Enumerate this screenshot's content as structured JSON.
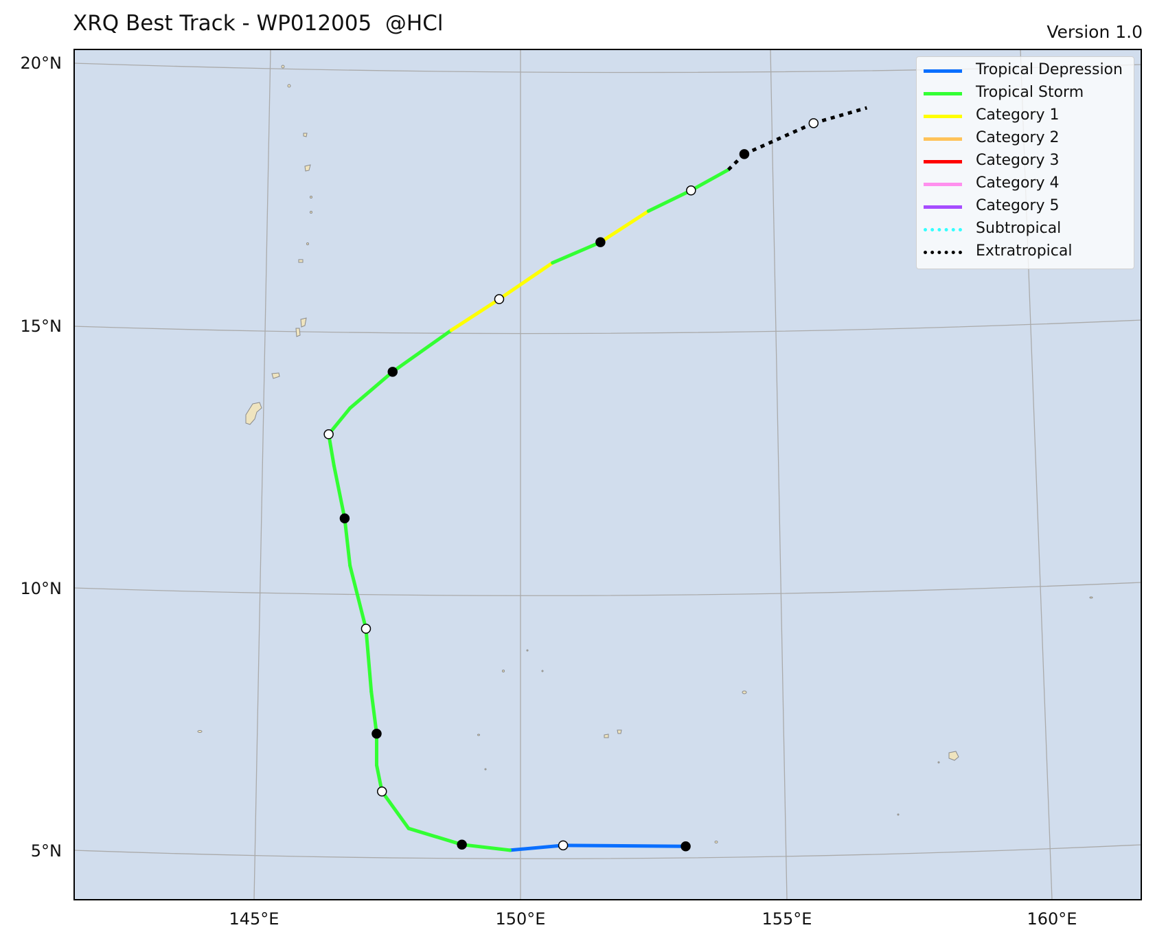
{
  "header": {
    "title": "XRQ Best Track - WP012005  @HCl",
    "version": "Version 1.0"
  },
  "map": {
    "ocean_color": "#d1dded",
    "land_color": "#efe4bf",
    "grid_color": "#aaaaaa",
    "lat_labels": [
      "20°N",
      "15°N",
      "10°N",
      "5°N"
    ],
    "lon_labels": [
      "145°E",
      "150°E",
      "155°E",
      "160°E"
    ]
  },
  "legend": {
    "items": [
      {
        "label": "Tropical Depression",
        "color": "#0a6fff",
        "style": "solid"
      },
      {
        "label": "Tropical Storm",
        "color": "#33ff33",
        "style": "solid"
      },
      {
        "label": "Category 1",
        "color": "#ffff00",
        "style": "solid"
      },
      {
        "label": "Category 2",
        "color": "#ffc35a",
        "style": "solid"
      },
      {
        "label": "Category 3",
        "color": "#ff0000",
        "style": "solid"
      },
      {
        "label": "Category 4",
        "color": "#ff90ee",
        "style": "solid"
      },
      {
        "label": "Category 5",
        "color": "#a64dff",
        "style": "solid"
      },
      {
        "label": "Subtropical",
        "color": "#33ffff",
        "style": "dotted"
      },
      {
        "label": "Extratropical",
        "color": "#000000",
        "style": "dotted"
      }
    ]
  },
  "track": {
    "points": [
      {
        "lon": 153.1,
        "lat": 5.1,
        "marker": "filled",
        "category": "Tropical Depression"
      },
      {
        "lon": 150.8,
        "lat": 5.1,
        "marker": "open",
        "category": "Tropical Depression"
      },
      {
        "lon": 149.8,
        "lat": 5.0,
        "marker": "none",
        "category": "Tropical Depression"
      },
      {
        "lon": 148.9,
        "lat": 5.1,
        "marker": "filled",
        "category": "Tropical Storm"
      },
      {
        "lon": 147.9,
        "lat": 5.4,
        "marker": "none",
        "category": "Tropical Storm"
      },
      {
        "lon": 147.4,
        "lat": 6.1,
        "marker": "open",
        "category": "Tropical Storm"
      },
      {
        "lon": 147.3,
        "lat": 6.6,
        "marker": "none",
        "category": "Tropical Storm"
      },
      {
        "lon": 147.3,
        "lat": 7.2,
        "marker": "filled",
        "category": "Tropical Storm"
      },
      {
        "lon": 147.2,
        "lat": 8.0,
        "marker": "none",
        "category": "Tropical Storm"
      },
      {
        "lon": 147.1,
        "lat": 9.2,
        "marker": "open",
        "category": "Tropical Storm"
      },
      {
        "lon": 146.8,
        "lat": 10.4,
        "marker": "none",
        "category": "Tropical Storm"
      },
      {
        "lon": 146.7,
        "lat": 11.3,
        "marker": "filled",
        "category": "Tropical Storm"
      },
      {
        "lon": 146.5,
        "lat": 12.3,
        "marker": "none",
        "category": "Tropical Storm"
      },
      {
        "lon": 146.4,
        "lat": 12.9,
        "marker": "open",
        "category": "Tropical Storm"
      },
      {
        "lon": 146.8,
        "lat": 13.4,
        "marker": "none",
        "category": "Tropical Storm"
      },
      {
        "lon": 147.6,
        "lat": 14.1,
        "marker": "filled",
        "category": "Tropical Storm"
      },
      {
        "lon": 148.7,
        "lat": 14.9,
        "marker": "none",
        "category": "Tropical Storm"
      },
      {
        "lon": 149.6,
        "lat": 15.5,
        "marker": "open",
        "category": "Category 1"
      },
      {
        "lon": 150.6,
        "lat": 16.2,
        "marker": "none",
        "category": "Category 1"
      },
      {
        "lon": 151.5,
        "lat": 16.6,
        "marker": "filled",
        "category": "Tropical Storm"
      },
      {
        "lon": 152.4,
        "lat": 17.2,
        "marker": "none",
        "category": "Category 1"
      },
      {
        "lon": 153.2,
        "lat": 17.6,
        "marker": "open",
        "category": "Tropical Storm"
      },
      {
        "lon": 153.9,
        "lat": 18.0,
        "marker": "none",
        "category": "Tropical Storm"
      },
      {
        "lon": 154.2,
        "lat": 18.3,
        "marker": "filled",
        "category": "Extratropical"
      },
      {
        "lon": 155.5,
        "lat": 18.9,
        "marker": "open",
        "category": "Extratropical"
      },
      {
        "lon": 156.5,
        "lat": 19.2,
        "marker": "none",
        "category": "Extratropical"
      }
    ]
  }
}
